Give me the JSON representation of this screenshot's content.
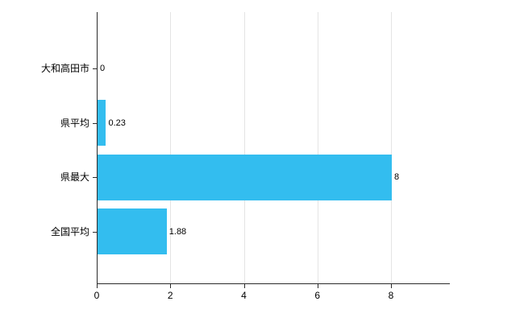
{
  "chart_data": {
    "type": "bar",
    "orientation": "horizontal",
    "title": "",
    "xlabel": "",
    "ylabel": "",
    "categories": [
      "大和高田市",
      "県平均",
      "県最大",
      "全国平均"
    ],
    "values": [
      0,
      0.23,
      8,
      1.88
    ],
    "value_labels": [
      "0",
      "0.23",
      "8",
      "1.88"
    ],
    "x_ticks": [
      0,
      2,
      4,
      6,
      8
    ],
    "x_tick_labels": [
      "0",
      "2",
      "4",
      "6",
      "8"
    ],
    "xlim": [
      0,
      9.6
    ],
    "grid": true,
    "legend_position": "none",
    "bar_color": "#33bdef"
  }
}
